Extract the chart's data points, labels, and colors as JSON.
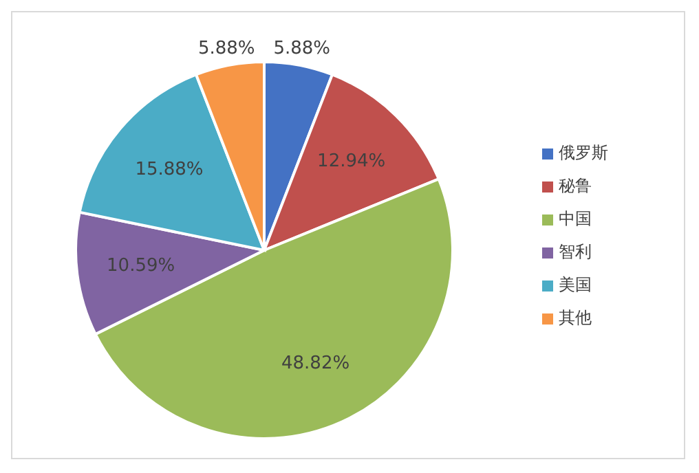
{
  "chart_data": {
    "type": "pie",
    "categories": [
      "俄罗斯",
      "秘鲁",
      "中国",
      "智利",
      "美国",
      "其他"
    ],
    "values": [
      5.88,
      12.94,
      48.82,
      10.59,
      15.88,
      5.88
    ],
    "colors": [
      "#4472c4",
      "#c0504d",
      "#9bbb59",
      "#8064a2",
      "#4bacc6",
      "#f79646"
    ],
    "value_labels": [
      "5.88%",
      "12.94%",
      "48.82%",
      "10.59%",
      "15.88%",
      "5.88%"
    ],
    "legend": "right"
  }
}
